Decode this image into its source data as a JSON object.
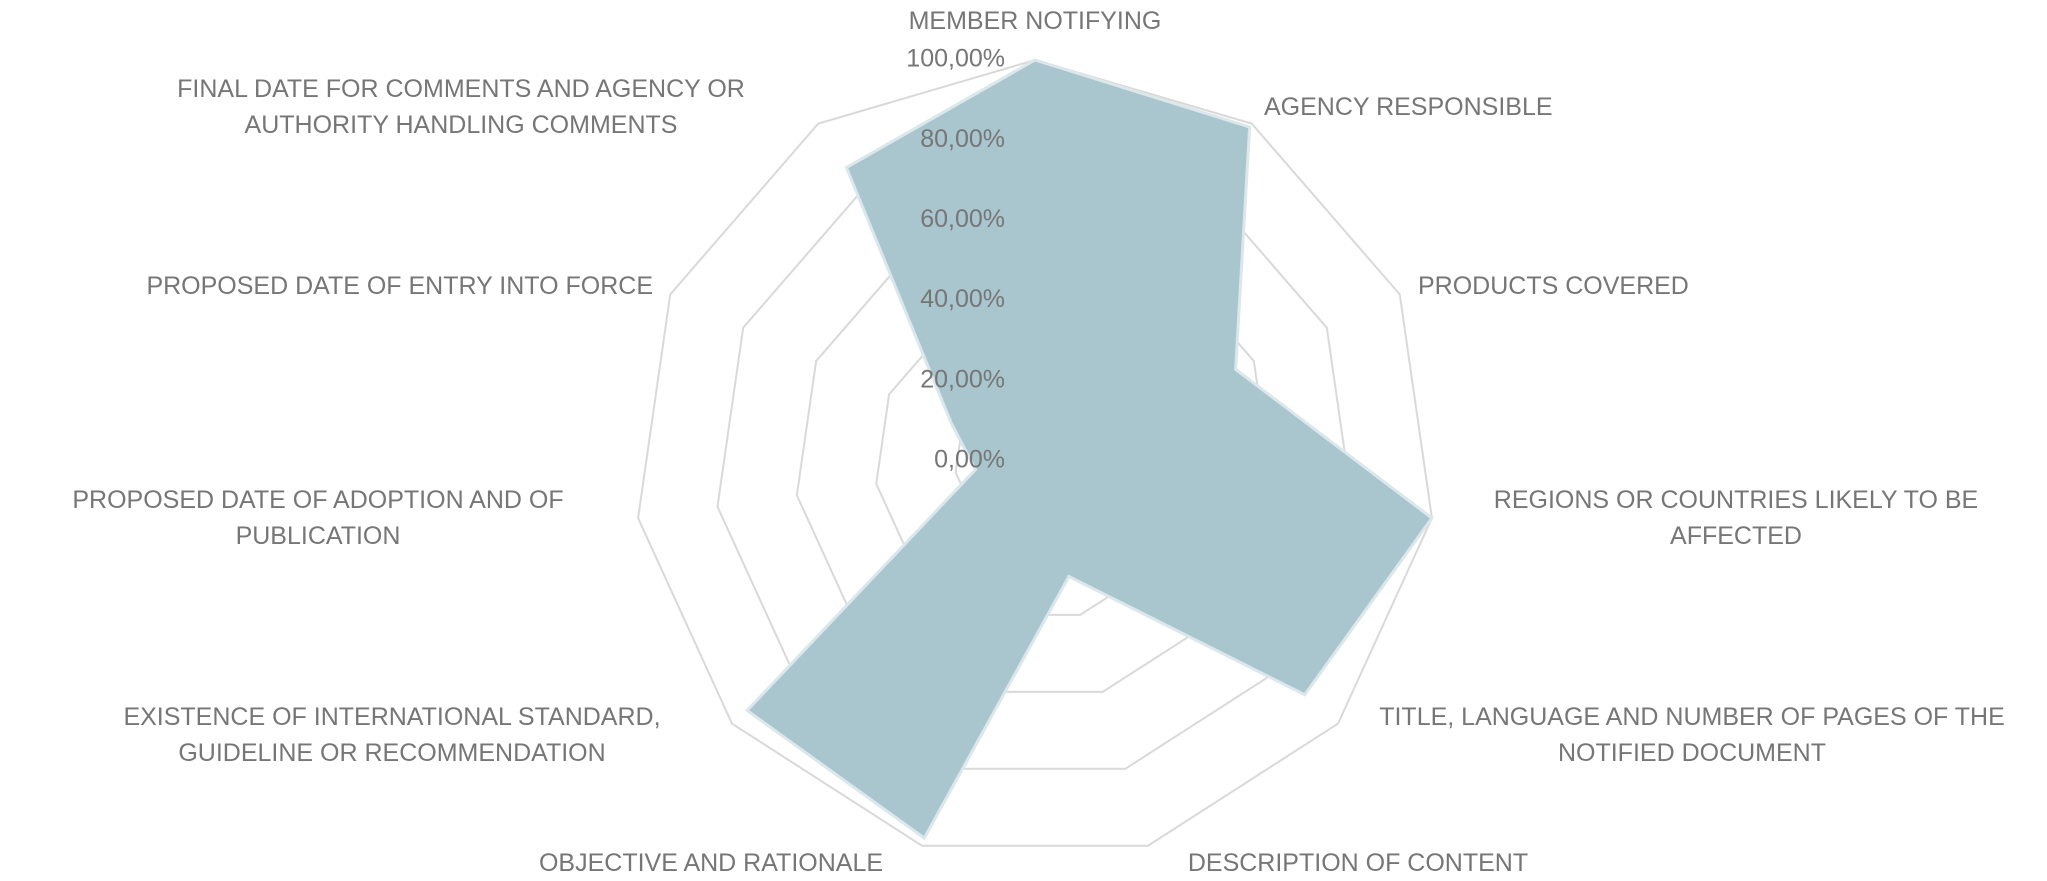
{
  "chart_data": {
    "type": "radar",
    "categories": [
      "MEMBER NOTIFYING",
      "AGENCY RESPONSIBLE",
      "PRODUCTS COVERED",
      "REGIONS OR COUNTRIES LIKELY TO BE AFFECTED",
      "TITLE, LANGUAGE AND NUMBER OF PAGES OF THE NOTIFIED DOCUMENT",
      "DESCRIPTION OF CONTENT",
      "OBJECTIVE AND RATIONALE",
      "EXISTENCE OF INTERNATIONAL STANDARD, GUIDELINE OR RECOMMENDATION",
      "PROPOSED DATE OF ADOPTION AND OF PUBLICATION",
      "PROPOSED DATE OF ENTRY INTO FORCE",
      "FINAL DATE FOR COMMENTS AND AGENCY OR AUTHORITY HANDLING COMMENTS"
    ],
    "values": [
      100,
      99,
      55,
      100,
      89,
      30,
      98,
      95,
      15,
      23,
      87
    ],
    "color": "#a9c6cf",
    "ylim": [
      0,
      100
    ],
    "yticks": [
      {
        "value": 0,
        "label": "0,00%"
      },
      {
        "value": 20,
        "label": "20,00%"
      },
      {
        "value": 40,
        "label": "40,00%"
      },
      {
        "value": 60,
        "label": "60,00%"
      },
      {
        "value": 80,
        "label": "80,00%"
      },
      {
        "value": 100,
        "label": "100,00%"
      }
    ],
    "grid": true
  }
}
